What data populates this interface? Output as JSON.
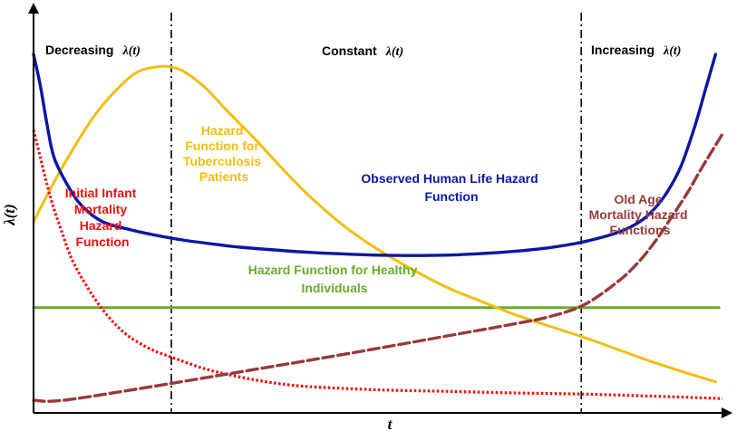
{
  "chart_data": {
    "type": "line",
    "title": "",
    "xlabel": "t",
    "ylabel": "λ(t)",
    "xlim": [
      0,
      100
    ],
    "ylim": [
      0,
      100
    ],
    "grid": false,
    "regions": [
      {
        "label": "Decreasing",
        "symbol": "λ(t)"
      },
      {
        "label": "Constant",
        "symbol": "λ(t)"
      },
      {
        "label": "Increasing",
        "symbol": "λ(t)"
      }
    ],
    "region_boundaries": [
      20,
      79.5
    ],
    "colors": {
      "observed": "#0a17a3",
      "tuberculosis": "#f2bd11",
      "infant": "#ee1111",
      "old_age": "#973a3a",
      "healthy": "#6aaa29"
    },
    "series": [
      {
        "name": "Observed Human Life Hazard Function",
        "style": "solid",
        "color": "#0a17a3",
        "x": [
          0,
          1,
          2,
          3,
          5,
          7,
          10,
          14,
          18,
          22,
          26,
          30,
          40,
          50,
          55,
          60,
          65,
          70,
          75,
          80,
          85,
          88,
          90,
          92,
          94,
          96,
          97.5,
          99
        ],
        "y": [
          90,
          82,
          72,
          64,
          57,
          52,
          48,
          46,
          44.5,
          43.3,
          42.4,
          41.6,
          40.3,
          39.6,
          39.5,
          39.6,
          40,
          40.6,
          41.5,
          43,
          45.4,
          48,
          51,
          55.5,
          62,
          72,
          81,
          90
        ]
      },
      {
        "name": "Hazard Function for Tuberculosis Patients",
        "style": "solid",
        "color": "#f2bd11",
        "x": [
          0,
          3,
          6,
          9,
          12,
          15,
          18,
          20,
          22,
          25,
          28,
          32,
          36,
          40,
          45,
          50,
          55,
          60,
          65,
          70,
          75,
          80,
          85,
          90,
          95,
          99
        ],
        "y": [
          48,
          58,
          67,
          75,
          81,
          85.5,
          86.9,
          86.8,
          85.5,
          81.5,
          76,
          69,
          61.5,
          54.5,
          47,
          41,
          36,
          31.5,
          28,
          24.6,
          21.7,
          18.9,
          15.8,
          12.7,
          9.9,
          7.8
        ]
      },
      {
        "name": "Initial Infant Mortality Hazard Function",
        "style": "dotted",
        "color": "#ee1111",
        "x": [
          0,
          1,
          2,
          3,
          4,
          5,
          6,
          8,
          10,
          12,
          14,
          17,
          20,
          25,
          30,
          35,
          40,
          50,
          60,
          70,
          80,
          90,
          100
        ],
        "y": [
          71,
          64,
          57,
          51,
          46,
          41,
          37,
          31,
          26,
          22,
          19,
          16,
          14,
          11,
          9,
          7.5,
          6.6,
          5.8,
          5.4,
          5,
          4.7,
          4.2,
          3.6
        ]
      },
      {
        "name": "Old Age Mortality Hazard Functions",
        "style": "dashed",
        "color": "#973a3a",
        "x": [
          0,
          2,
          5,
          10,
          20,
          30,
          40,
          50,
          60,
          70,
          75,
          80,
          85,
          88,
          90,
          92,
          95,
          97,
          100
        ],
        "y": [
          3.2,
          2.9,
          3.3,
          4.6,
          7.4,
          10.3,
          13.2,
          16.2,
          19.3,
          22.4,
          24.2,
          27.2,
          33.2,
          38.2,
          42.5,
          47.5,
          55.5,
          61.5,
          70
        ]
      },
      {
        "name": "Hazard Function for Healthy Individuals",
        "style": "solid",
        "color": "#6aaa29",
        "x": [
          0,
          99.5
        ],
        "y": [
          26.4,
          26.4
        ]
      }
    ],
    "annotations": [
      {
        "lines": [
          "Hazard",
          "Function for",
          "Tuberculosis",
          "Patients"
        ],
        "color": "#f2bd11"
      },
      {
        "lines": [
          "Observed Human Life Hazard",
          "Function"
        ],
        "color": "#0a17a3"
      },
      {
        "lines": [
          "Initial Infant",
          "Mortality",
          "Hazard",
          "Function"
        ],
        "color": "#ee1111"
      },
      {
        "lines": [
          "Old Age",
          "Mortality Hazard",
          "Functions"
        ],
        "color": "#973a3a"
      },
      {
        "lines": [
          "Hazard Function for Healthy",
          "Individuals"
        ],
        "color": "#6aaa29"
      }
    ]
  }
}
